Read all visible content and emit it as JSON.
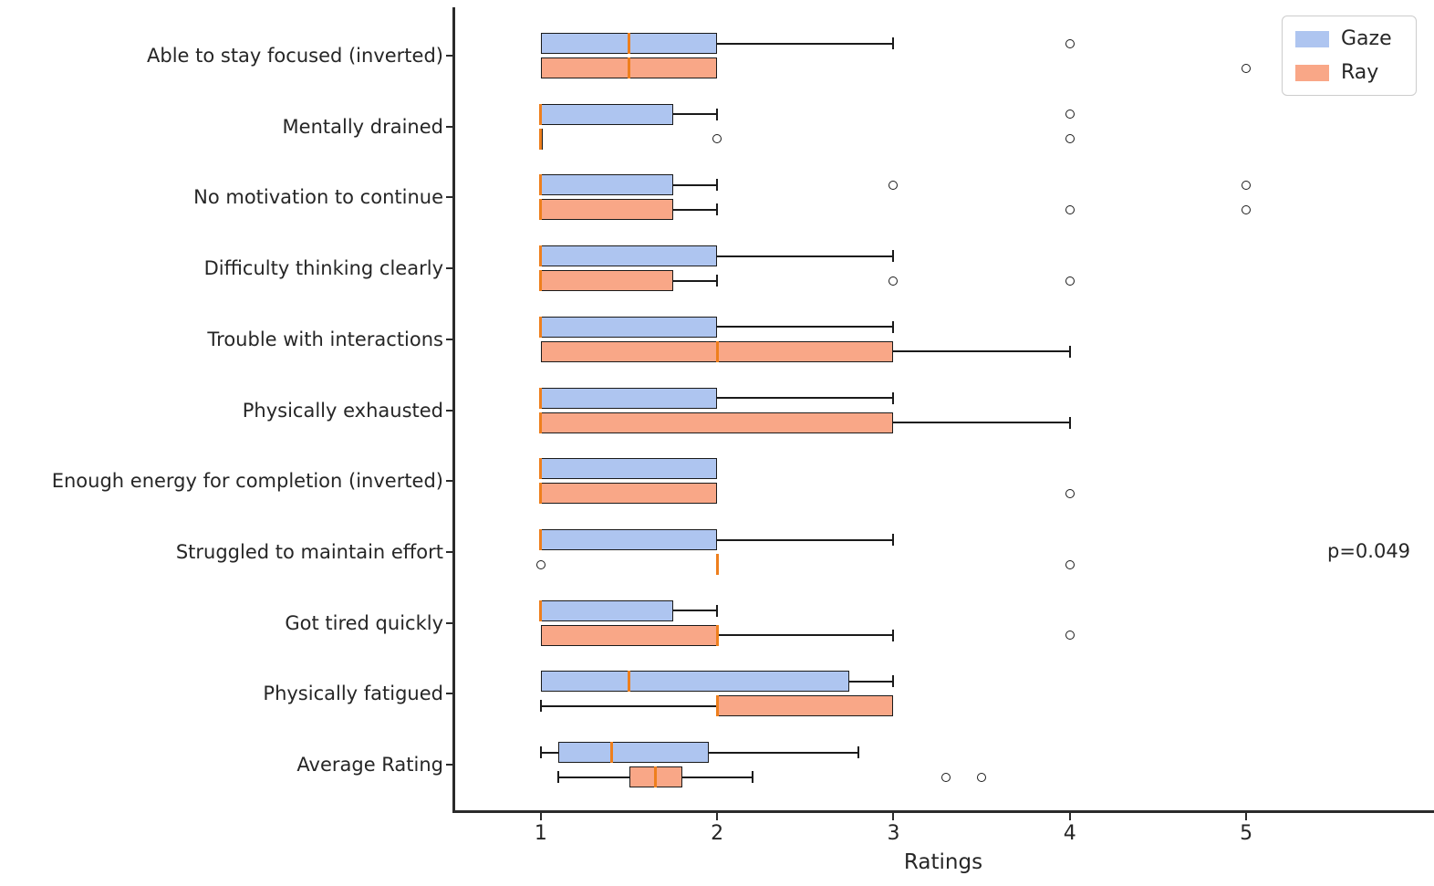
{
  "chart_data": {
    "type": "boxplot",
    "orientation": "horizontal",
    "xlabel": "Ratings",
    "x_ticks": [
      "1",
      "2",
      "3",
      "4",
      "5"
    ],
    "x_tick_values": [
      1,
      2,
      3,
      4,
      5
    ],
    "xlim": [
      0.504,
      6.06
    ],
    "grid": false,
    "legend_position": "upper-right",
    "edge_color": "#1a1a1a",
    "median_color": "#ee7f1d",
    "categories": [
      "Able to stay focused (inverted)",
      "Mentally drained",
      "No motivation to continue",
      "Difficulty thinking clearly",
      "Trouble with interactions",
      "Physically exhausted",
      "Enough energy for completion (inverted)",
      "Struggled to maintain effort",
      "Got tired quickly",
      "Physically fatigued",
      "Average Rating"
    ],
    "series": [
      {
        "name": "Gaze",
        "color": "#aec5f0",
        "boxes": [
          {
            "whislo": 1,
            "q1": 1,
            "med": 1.5,
            "q3": 2,
            "whishi": 3,
            "outliers": [
              4
            ]
          },
          {
            "whislo": 1,
            "q1": 1,
            "med": 1,
            "q3": 1.75,
            "whishi": 2,
            "outliers": [
              4
            ]
          },
          {
            "whislo": 1,
            "q1": 1,
            "med": 1,
            "q3": 1.75,
            "whishi": 2,
            "outliers": [
              3,
              5
            ]
          },
          {
            "whislo": 1,
            "q1": 1,
            "med": 1,
            "q3": 2,
            "whishi": 3,
            "outliers": []
          },
          {
            "whislo": 1,
            "q1": 1,
            "med": 1,
            "q3": 2,
            "whishi": 3,
            "outliers": []
          },
          {
            "whislo": 1,
            "q1": 1,
            "med": 1,
            "q3": 2,
            "whishi": 3,
            "outliers": []
          },
          {
            "whislo": 1,
            "q1": 1,
            "med": 1,
            "q3": 2,
            "whishi": 2,
            "outliers": []
          },
          {
            "whislo": 1,
            "q1": 1,
            "med": 1,
            "q3": 2,
            "whishi": 3,
            "outliers": []
          },
          {
            "whislo": 1,
            "q1": 1,
            "med": 1,
            "q3": 1.75,
            "whishi": 2,
            "outliers": []
          },
          {
            "whislo": 1,
            "q1": 1,
            "med": 1.5,
            "q3": 2.75,
            "whishi": 3,
            "outliers": []
          },
          {
            "whislo": 1.0,
            "q1": 1.1,
            "med": 1.4,
            "q3": 1.95,
            "whishi": 2.8,
            "outliers": []
          }
        ]
      },
      {
        "name": "Ray",
        "color": "#f9a787",
        "boxes": [
          {
            "whislo": 1,
            "q1": 1,
            "med": 1.5,
            "q3": 2,
            "whishi": 2,
            "outliers": [
              5
            ]
          },
          {
            "whislo": 1,
            "q1": 1,
            "med": 1,
            "q3": 1,
            "whishi": 1,
            "outliers": [
              2,
              4
            ]
          },
          {
            "whislo": 1,
            "q1": 1,
            "med": 1,
            "q3": 1.75,
            "whishi": 2,
            "outliers": [
              4,
              5
            ]
          },
          {
            "whislo": 1,
            "q1": 1,
            "med": 1,
            "q3": 1.75,
            "whishi": 2,
            "outliers": [
              3,
              4
            ]
          },
          {
            "whislo": 1,
            "q1": 1,
            "med": 2,
            "q3": 3,
            "whishi": 4,
            "outliers": []
          },
          {
            "whislo": 1,
            "q1": 1,
            "med": 1,
            "q3": 3,
            "whishi": 4,
            "outliers": []
          },
          {
            "whislo": 1,
            "q1": 1,
            "med": 1,
            "q3": 2,
            "whishi": 2,
            "outliers": [
              4
            ]
          },
          {
            "whislo": 2,
            "q1": 2,
            "med": 2,
            "q3": 2,
            "whishi": 2,
            "outliers": [
              1,
              4
            ]
          },
          {
            "whislo": 1,
            "q1": 1,
            "med": 2,
            "q3": 2,
            "whishi": 3,
            "outliers": [
              4
            ]
          },
          {
            "whislo": 1,
            "q1": 2,
            "med": 2,
            "q3": 3,
            "whishi": 3,
            "outliers": []
          },
          {
            "whislo": 1.1,
            "q1": 1.5,
            "med": 1.65,
            "q3": 1.8,
            "whishi": 2.2,
            "outliers": [
              3.3,
              3.5
            ]
          }
        ]
      }
    ],
    "annotations": [
      {
        "text": "p=0.049",
        "category": "Struggled to maintain effort",
        "row_index": 7
      }
    ]
  }
}
